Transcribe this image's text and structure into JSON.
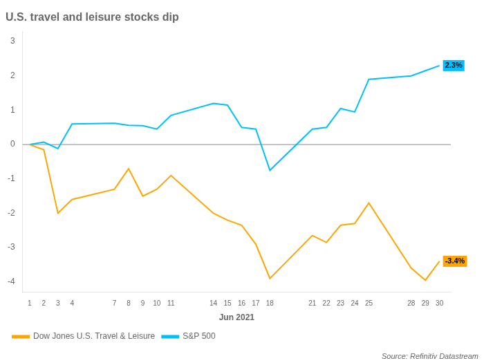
{
  "chart_data": {
    "type": "line",
    "title": "U.S. travel and leisure stocks dip",
    "x_label": "Jun 2021",
    "source": "Source: Refinitiv Datastream",
    "x": [
      1,
      2,
      3,
      4,
      7,
      8,
      9,
      10,
      11,
      14,
      15,
      16,
      17,
      18,
      21,
      22,
      23,
      24,
      25,
      28,
      29,
      30
    ],
    "series": [
      {
        "name": "Dow Jones U.S. Travel & Leisure",
        "color": "#FFA500",
        "values": [
          0,
          -0.15,
          -2.0,
          -1.6,
          -1.3,
          -0.7,
          -1.5,
          -1.3,
          -0.9,
          -2.0,
          -2.2,
          -2.35,
          -2.9,
          -3.9,
          -2.65,
          -2.85,
          -2.35,
          -2.3,
          -1.7,
          -3.6,
          -3.95,
          -3.4
        ]
      },
      {
        "name": "S&P 500",
        "color": "#00BFFF",
        "values": [
          0,
          0.07,
          -0.12,
          0.6,
          0.62,
          0.56,
          0.55,
          0.45,
          0.85,
          1.2,
          1.15,
          0.5,
          0.45,
          -0.75,
          0.45,
          0.5,
          1.05,
          0.95,
          1.9,
          2.0,
          2.15,
          2.3
        ]
      }
    ],
    "annotations": [
      {
        "text": "2.3%",
        "x": 30,
        "y": 2.3
      },
      {
        "text": "-3.4%",
        "x": 30,
        "y": -3.4
      }
    ],
    "hlines": [
      0
    ],
    "xlim": [
      0.5,
      30.8
    ],
    "xticks": [
      1,
      2,
      3,
      4,
      7,
      8,
      9,
      10,
      11,
      14,
      15,
      16,
      17,
      18,
      21,
      22,
      23,
      24,
      25,
      28,
      29,
      30
    ],
    "ylim": [
      -4.3,
      3.3
    ],
    "yticks": [
      -4,
      -3,
      -2,
      -1,
      0,
      1,
      2,
      3
    ],
    "grid": false,
    "legend": "bottom"
  }
}
